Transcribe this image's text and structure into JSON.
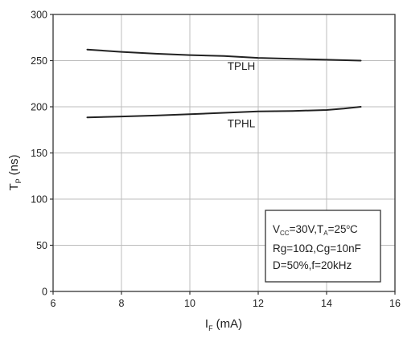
{
  "chart_data": {
    "type": "line",
    "xlabel": "I",
    "xlabel_sub": "F",
    "xlabel_unit": "(mA)",
    "ylabel": "T",
    "ylabel_sub": "P",
    "ylabel_unit": "(ns)",
    "xlim": [
      6,
      16
    ],
    "ylim": [
      0,
      300
    ],
    "xticks": [
      6,
      8,
      10,
      12,
      14,
      16
    ],
    "yticks": [
      0,
      50,
      100,
      150,
      200,
      250,
      300
    ],
    "grid": true,
    "series": [
      {
        "name": "TPLH",
        "x": [
          7,
          8,
          9,
          10,
          11,
          12,
          13,
          14,
          15
        ],
        "y": [
          262,
          259.5,
          257.5,
          256,
          255,
          253,
          252,
          251,
          250
        ]
      },
      {
        "name": "TPHL",
        "x": [
          7,
          8,
          9,
          10,
          11,
          12,
          13,
          14,
          14.5,
          15
        ],
        "y": [
          188.5,
          189.5,
          190.5,
          192,
          193.5,
          195,
          195.5,
          196.5,
          198,
          200
        ]
      }
    ],
    "annotations": [
      {
        "text": "TPLH",
        "x": 11.1,
        "y": 240
      },
      {
        "text": "TPHL",
        "x": 11.1,
        "y": 178
      }
    ],
    "conditions_box": {
      "line1": {
        "v": "V",
        "v_sub": "CC",
        "mid": "=30V,T",
        "t_sub": "A",
        "rest": "=25",
        "deg": "o",
        "unit": "C"
      },
      "line2": "Rg=10Ω,Cg=10nF",
      "line3": "D=50%,f=20kHz"
    }
  }
}
